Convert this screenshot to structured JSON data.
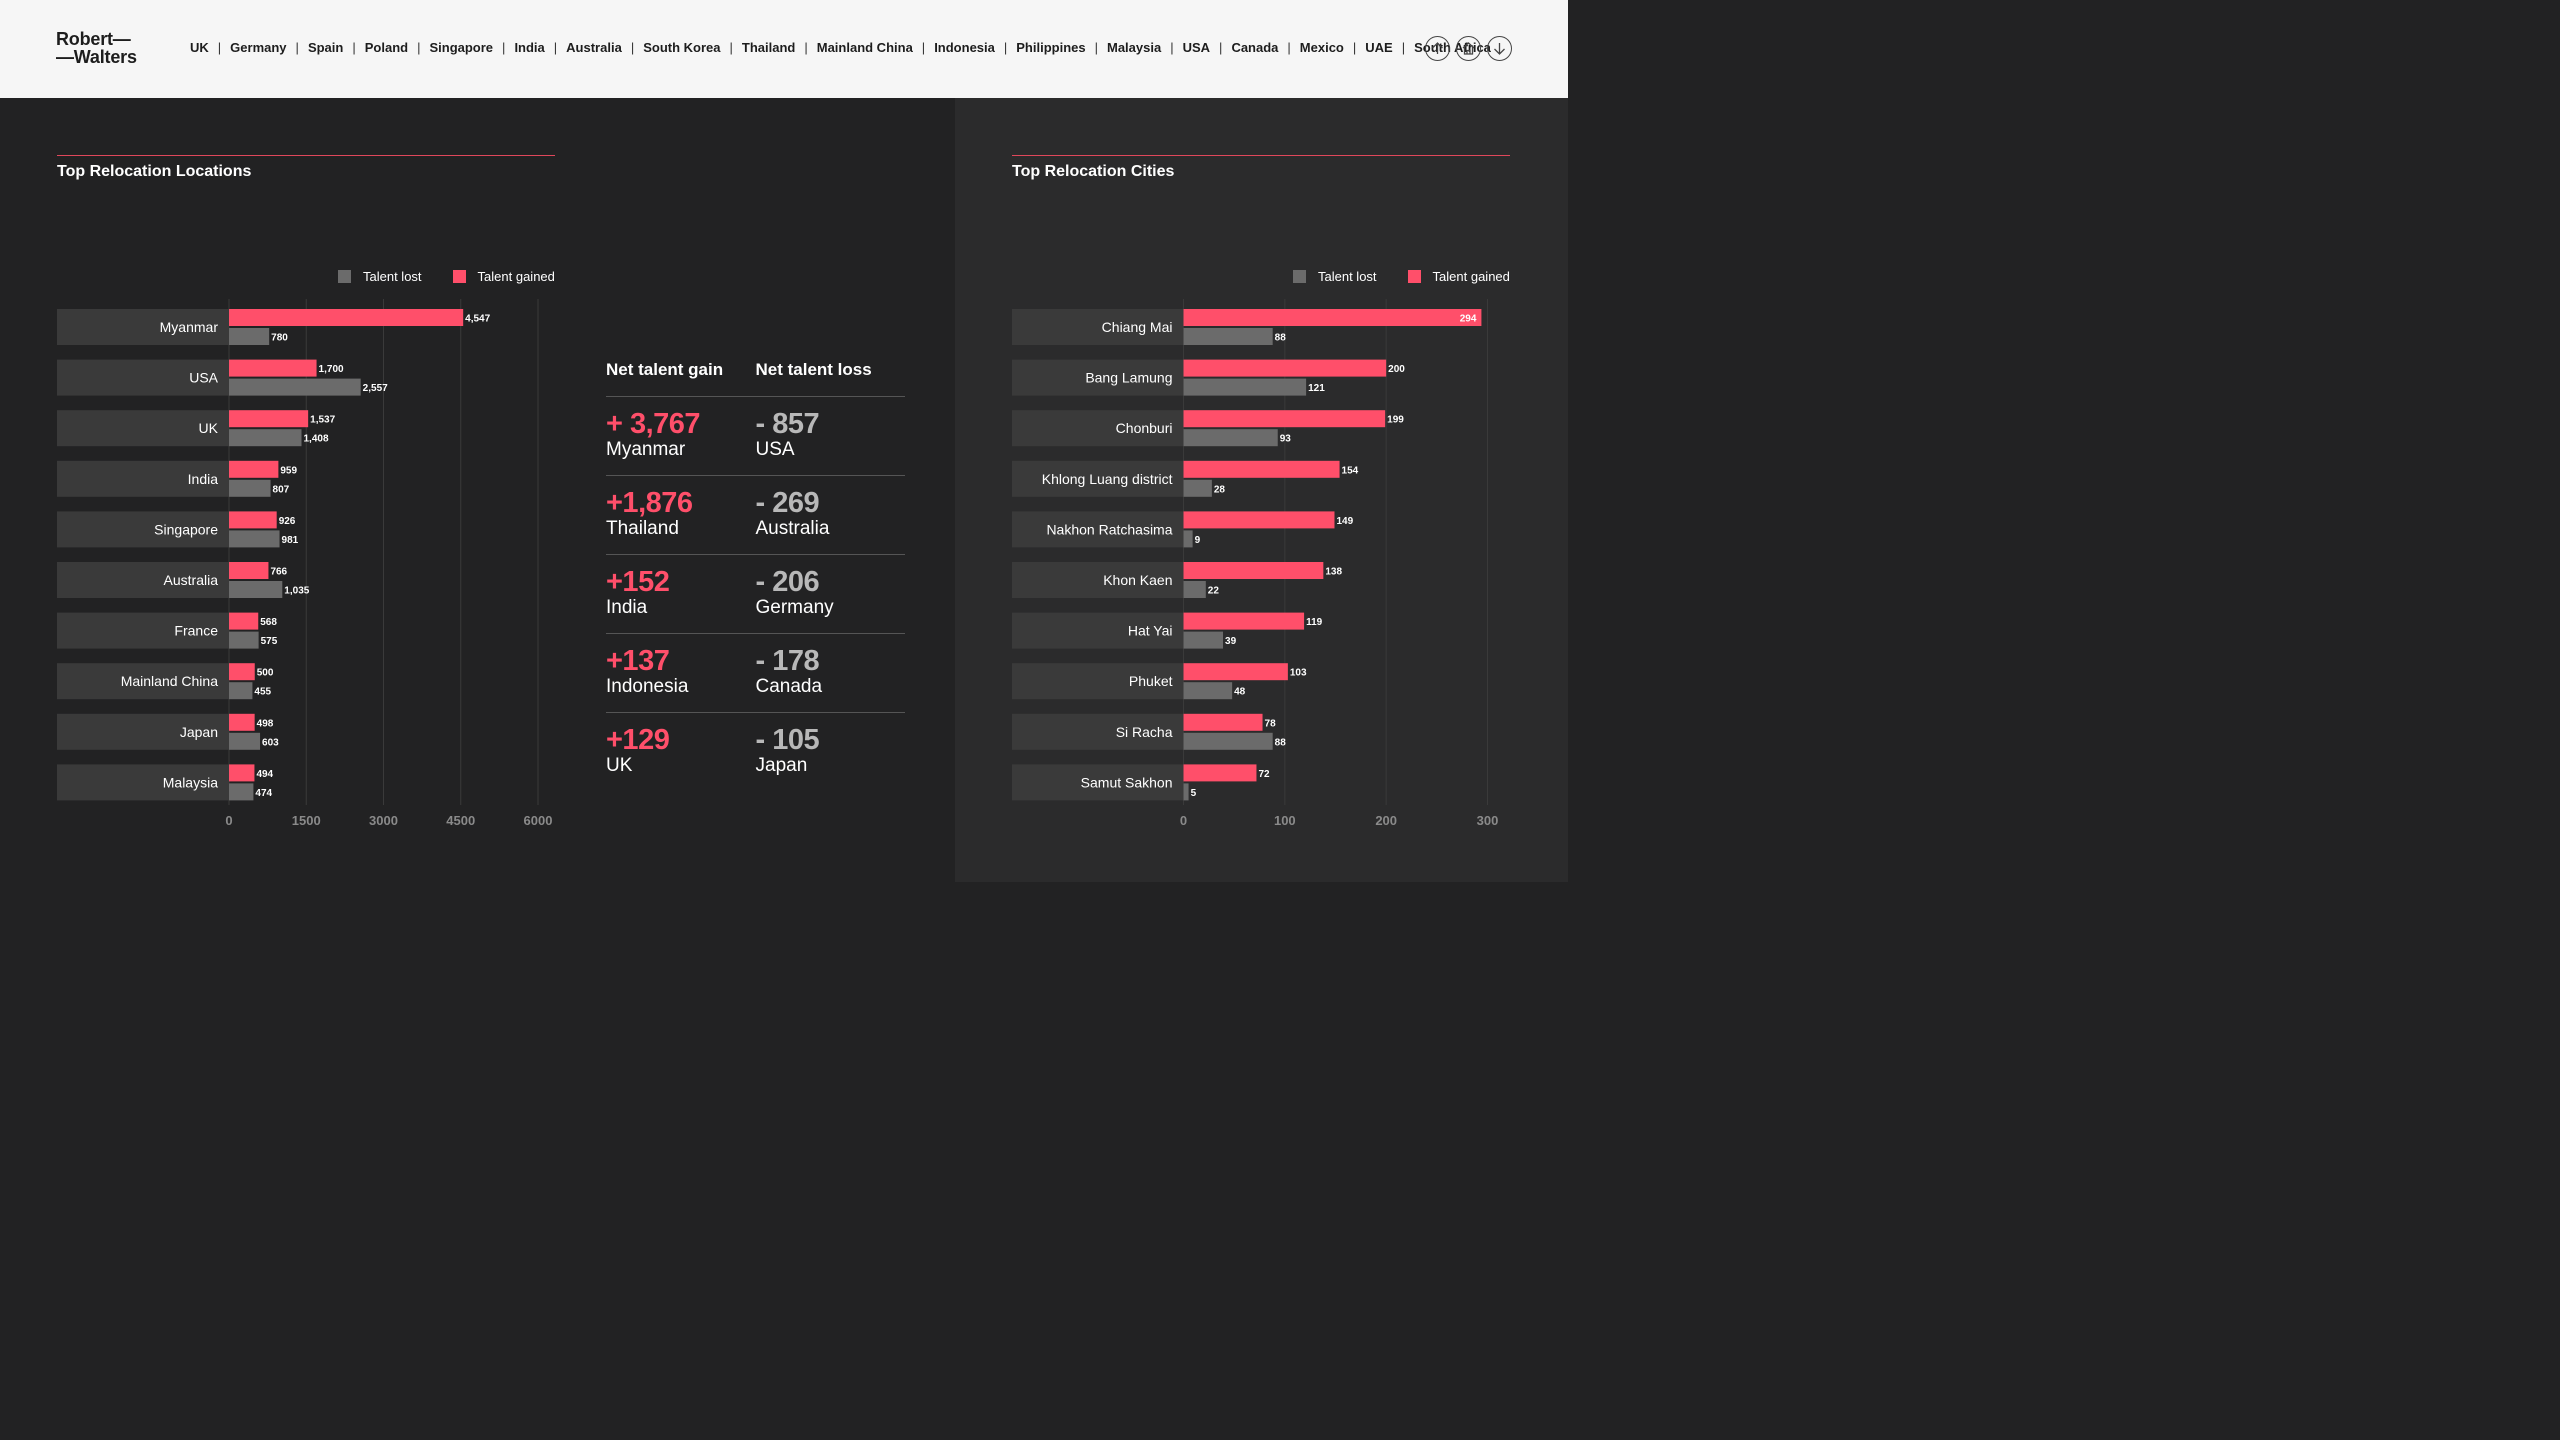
{
  "header": {
    "logo_line1": "Robert—",
    "logo_line2": "—Walters",
    "nav": [
      "UK",
      "Germany",
      "Spain",
      "Poland",
      "Singapore",
      "India",
      "Australia",
      "South Korea",
      "Thailand",
      "Mainland China",
      "Indonesia",
      "Philippines",
      "Malaysia",
      "USA",
      "Canada",
      "Mexico",
      "UAE",
      "South Africa"
    ],
    "icons": [
      "arrow-up-icon",
      "home-icon",
      "arrow-down-icon"
    ]
  },
  "colors": {
    "gained": "#ff4f6a",
    "lost": "#6b6b6b",
    "accent_rule": "#e0475b"
  },
  "legend": {
    "lost": "Talent lost",
    "gained": "Talent gained"
  },
  "chart_data": [
    {
      "type": "bar",
      "orientation": "horizontal",
      "title": "Top Relocation Locations",
      "categories": [
        "Myanmar",
        "USA",
        "UK",
        "India",
        "Singapore",
        "Australia",
        "France",
        "Mainland China",
        "Japan",
        "Malaysia"
      ],
      "series": [
        {
          "name": "Talent gained",
          "values": [
            4547,
            1700,
            1537,
            959,
            926,
            766,
            568,
            500,
            498,
            494
          ],
          "labels": [
            "4,547",
            "1,700",
            "1,537",
            "959",
            "926",
            "766",
            "568",
            "500",
            "498",
            "494"
          ]
        },
        {
          "name": "Talent lost",
          "values": [
            780,
            2557,
            1408,
            807,
            981,
            1035,
            575,
            455,
            603,
            474
          ],
          "labels": [
            "780",
            "2,557",
            "1,408",
            "807",
            "981",
            "1,035",
            "575",
            "455",
            "603",
            "474"
          ]
        }
      ],
      "xticks": [
        "0",
        "1500",
        "3000",
        "4500",
        "6000"
      ],
      "xlim": [
        0,
        6000
      ],
      "grid": true,
      "legend_position": "top-right"
    },
    {
      "type": "bar",
      "orientation": "horizontal",
      "title": "Top Relocation Cities",
      "categories": [
        "Chiang Mai",
        "Bang Lamung",
        "Chonburi",
        "Khlong Luang district",
        "Nakhon Ratchasima",
        "Khon Kaen",
        "Hat Yai",
        "Phuket",
        "Si Racha",
        "Samut Sakhon"
      ],
      "series": [
        {
          "name": "Talent gained",
          "values": [
            294,
            200,
            199,
            154,
            149,
            138,
            119,
            103,
            78,
            72
          ],
          "labels": [
            "294",
            "200",
            "199",
            "154",
            "149",
            "138",
            "119",
            "103",
            "78",
            "72"
          ]
        },
        {
          "name": "Talent lost",
          "values": [
            88,
            121,
            93,
            28,
            9,
            22,
            39,
            48,
            88,
            5
          ],
          "labels": [
            "88",
            "121",
            "93",
            "28",
            "9",
            "22",
            "39",
            "48",
            "88",
            "5"
          ]
        }
      ],
      "xticks": [
        "0",
        "100",
        "200",
        "300"
      ],
      "xlim": [
        0,
        300
      ],
      "grid": true,
      "legend_position": "top-right"
    }
  ],
  "net_talent": {
    "gain_header": "Net talent gain",
    "loss_header": "Net talent loss",
    "rows": [
      {
        "gain": "+ 3,767",
        "gain_country": "Myanmar",
        "loss": "- 857",
        "loss_country": "USA"
      },
      {
        "gain": "+1,876",
        "gain_country": "Thailand",
        "loss": "- 269",
        "loss_country": "Australia"
      },
      {
        "gain": "+152",
        "gain_country": "India",
        "loss": "- 206",
        "loss_country": "Germany"
      },
      {
        "gain": "+137",
        "gain_country": "Indonesia",
        "loss": "- 178",
        "loss_country": "Canada"
      },
      {
        "gain": "+129",
        "gain_country": "UK",
        "loss": "- 105",
        "loss_country": "Japan"
      }
    ]
  }
}
